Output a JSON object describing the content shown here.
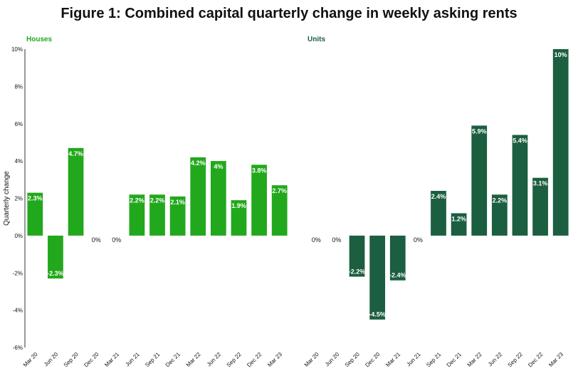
{
  "title": "Figure 1: Combined capital quarterly change in weekly asking rents",
  "ylabel": "Quarterly change",
  "colors": {
    "houses": "#22a81c",
    "units": "#1b5e40",
    "axis": "#333333",
    "text": "#111111"
  },
  "chart_data": [
    {
      "type": "bar",
      "title": "Houses",
      "categories": [
        "Mar 20",
        "Jun 20",
        "Sep 20",
        "Dec 20",
        "Mar 21",
        "Jun 21",
        "Sep 21",
        "Dec 21",
        "Mar 22",
        "Jun 22",
        "Sep 22",
        "Dec 22",
        "Mar 23"
      ],
      "values": [
        2.3,
        -2.3,
        4.7,
        0,
        0,
        2.2,
        2.2,
        2.1,
        4.2,
        4,
        1.9,
        3.8,
        2.7
      ],
      "labels": [
        "2.3%",
        "-2.3%",
        "4.7%",
        "0%",
        "0%",
        "2.2%",
        "2.2%",
        "2.1%",
        "4.2%",
        "4%",
        "1.9%",
        "3.8%",
        "2.7%"
      ],
      "ylabel": "Quarterly change",
      "ylim": [
        -6,
        10
      ],
      "yticks": [
        "-6%",
        "-4%",
        "-2%",
        "0%",
        "2%",
        "4%",
        "6%",
        "8%",
        "10%"
      ],
      "grid": false
    },
    {
      "type": "bar",
      "title": "Units",
      "categories": [
        "Mar 20",
        "Jun 20",
        "Sep 20",
        "Dec 20",
        "Mar 21",
        "Jun 21",
        "Sep 21",
        "Dec 21",
        "Mar 22",
        "Jun 22",
        "Sep 22",
        "Dec 22",
        "Mar 23"
      ],
      "values": [
        0,
        0,
        -2.2,
        -4.5,
        -2.4,
        0,
        2.4,
        1.2,
        5.9,
        2.2,
        5.4,
        3.1,
        10
      ],
      "labels": [
        "0%",
        "0%",
        "-2.2%",
        "-4.5%",
        "-2.4%",
        "0%",
        "2.4%",
        "1.2%",
        "5.9%",
        "2.2%",
        "5.4%",
        "3.1%",
        "10%"
      ],
      "ylim": [
        -6,
        10
      ],
      "grid": false
    }
  ]
}
